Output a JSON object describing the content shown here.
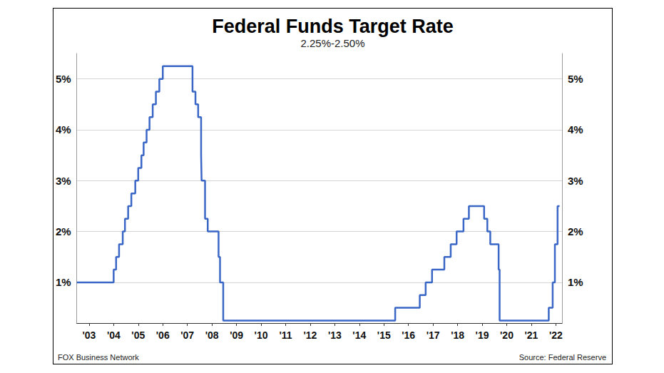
{
  "chart_data": {
    "type": "line",
    "title": "Federal Funds Target Rate",
    "subtitle": "2.25%-2.50%",
    "credit": "FOX Business Network",
    "source": "Source: Federal Reserve",
    "color": "#3a67c6",
    "line_style": "step",
    "grid": true,
    "tick_labels": true,
    "x": [
      2003.0,
      2004.5,
      2004.6,
      2004.72,
      2004.87,
      2004.96,
      2005.09,
      2005.22,
      2005.38,
      2005.5,
      2005.63,
      2005.72,
      2005.84,
      2005.96,
      2006.09,
      2006.22,
      2006.36,
      2006.5,
      2007.71,
      2007.83,
      2007.94,
      2008.06,
      2008.08,
      2008.22,
      2008.33,
      2008.77,
      2008.83,
      2008.96,
      2015.96,
      2016.96,
      2017.2,
      2017.46,
      2017.96,
      2018.22,
      2018.46,
      2018.74,
      2018.96,
      2019.58,
      2019.71,
      2019.83,
      2020.17,
      2020.21,
      2022.21,
      2022.37,
      2022.46,
      2022.57,
      2022.65
    ],
    "values": [
      1.0,
      1.25,
      1.5,
      1.75,
      2.0,
      2.25,
      2.5,
      2.75,
      3.0,
      3.25,
      3.5,
      3.75,
      4.0,
      4.25,
      4.5,
      4.75,
      5.0,
      5.25,
      4.75,
      4.5,
      4.25,
      3.5,
      3.0,
      2.25,
      2.0,
      1.5,
      1.0,
      0.25,
      0.5,
      0.75,
      1.0,
      1.25,
      1.5,
      1.75,
      2.0,
      2.25,
      2.5,
      2.25,
      2.0,
      1.75,
      1.25,
      0.25,
      0.5,
      1.0,
      1.75,
      2.5,
      2.5
    ],
    "xlim": [
      2003,
      2022.75
    ],
    "xticks": [
      {
        "value": 2003.5,
        "label": "'03"
      },
      {
        "value": 2004.5,
        "label": "'04"
      },
      {
        "value": 2005.5,
        "label": "'05"
      },
      {
        "value": 2006.5,
        "label": "'06"
      },
      {
        "value": 2007.5,
        "label": "'07"
      },
      {
        "value": 2008.5,
        "label": "'08"
      },
      {
        "value": 2009.5,
        "label": "'09"
      },
      {
        "value": 2010.5,
        "label": "'10"
      },
      {
        "value": 2011.5,
        "label": "'11"
      },
      {
        "value": 2012.5,
        "label": "'12"
      },
      {
        "value": 2013.5,
        "label": "'13"
      },
      {
        "value": 2014.5,
        "label": "'14"
      },
      {
        "value": 2015.5,
        "label": "'15"
      },
      {
        "value": 2016.5,
        "label": "'16"
      },
      {
        "value": 2017.5,
        "label": "'17"
      },
      {
        "value": 2018.5,
        "label": "'18"
      },
      {
        "value": 2019.5,
        "label": "'19"
      },
      {
        "value": 2020.5,
        "label": "'20"
      },
      {
        "value": 2021.5,
        "label": "'21"
      },
      {
        "value": 2022.5,
        "label": "'22"
      }
    ],
    "ylim": [
      0.2,
      5.5
    ],
    "yticks": [
      {
        "value": 1,
        "label": "1%"
      },
      {
        "value": 2,
        "label": "2%"
      },
      {
        "value": 3,
        "label": "3%"
      },
      {
        "value": 4,
        "label": "4%"
      },
      {
        "value": 5,
        "label": "5%"
      }
    ]
  }
}
